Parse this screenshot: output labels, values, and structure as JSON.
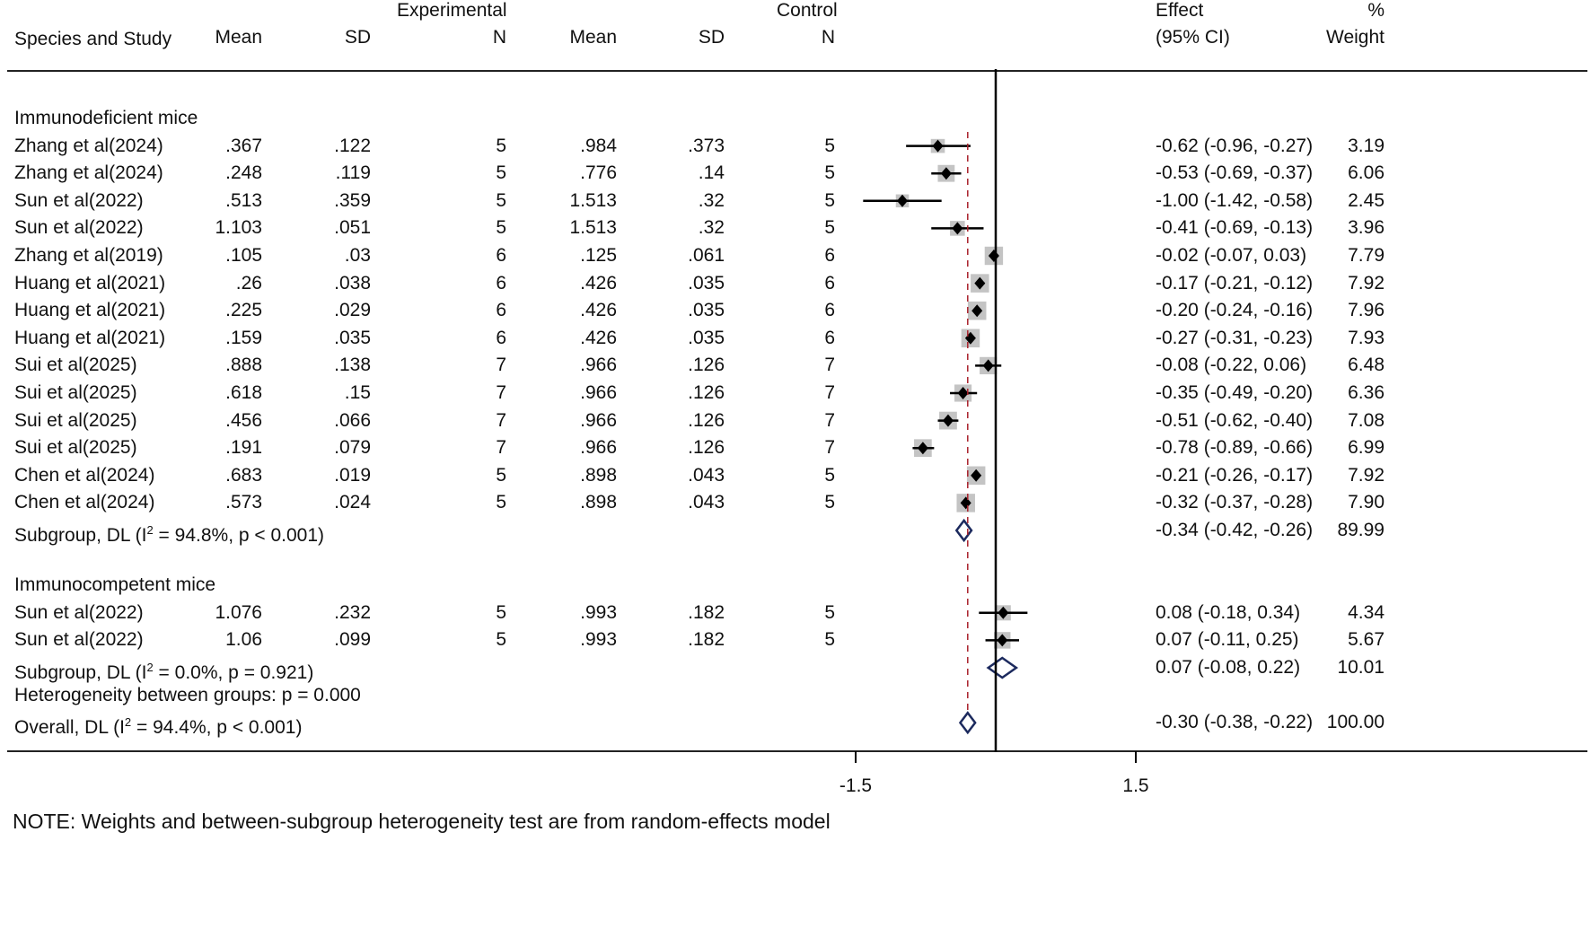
{
  "header": {
    "group_experimental": "Experimental",
    "group_control": "Control",
    "col_study": "Species and Study",
    "col_exp_mean": "Mean",
    "col_exp_sd": "SD",
    "col_exp_n": "N",
    "col_ctrl_mean": "Mean",
    "col_ctrl_sd": "SD",
    "col_ctrl_n": "N",
    "col_effect_1": "Effect",
    "col_effect_2": "(95% CI)",
    "col_weight_1": "%",
    "col_weight_2": "Weight"
  },
  "chart_data": {
    "type": "forest",
    "title": "",
    "xlabel": "",
    "x_ticks": [
      "-1.5",
      "1.5"
    ],
    "x_tick_values": [
      -1.5,
      1.5
    ],
    "xlim": [
      -3.0,
      4.2
    ],
    "null_line": 0,
    "overall_line": -0.3,
    "groups": [
      {
        "name": "Immunodeficient mice",
        "studies": [
          {
            "study": "Zhang et al(2024)",
            "exp_mean": ".367",
            "exp_sd": ".122",
            "exp_n": "5",
            "ctrl_mean": ".984",
            "ctrl_sd": ".373",
            "ctrl_n": "5",
            "effect": -0.62,
            "lo": -0.96,
            "hi": -0.27,
            "ci": "-0.62 (-0.96, -0.27)",
            "weight": "3.19",
            "w": 3.19
          },
          {
            "study": "Zhang et al(2024)",
            "exp_mean": ".248",
            "exp_sd": ".119",
            "exp_n": "5",
            "ctrl_mean": ".776",
            "ctrl_sd": ".14",
            "ctrl_n": "5",
            "effect": -0.53,
            "lo": -0.69,
            "hi": -0.37,
            "ci": "-0.53 (-0.69, -0.37)",
            "weight": "6.06",
            "w": 6.06
          },
          {
            "study": "Sun et al(2022)",
            "exp_mean": ".513",
            "exp_sd": ".359",
            "exp_n": "5",
            "ctrl_mean": "1.513",
            "ctrl_sd": ".32",
            "ctrl_n": "5",
            "effect": -1.0,
            "lo": -1.42,
            "hi": -0.58,
            "ci": "-1.00 (-1.42, -0.58)",
            "weight": "2.45",
            "w": 2.45
          },
          {
            "study": "Sun et al(2022)",
            "exp_mean": "1.103",
            "exp_sd": ".051",
            "exp_n": "5",
            "ctrl_mean": "1.513",
            "ctrl_sd": ".32",
            "ctrl_n": "5",
            "effect": -0.41,
            "lo": -0.69,
            "hi": -0.13,
            "ci": "-0.41 (-0.69, -0.13)",
            "weight": "3.96",
            "w": 3.96
          },
          {
            "study": "Zhang et al(2019)",
            "exp_mean": ".105",
            "exp_sd": ".03",
            "exp_n": "6",
            "ctrl_mean": ".125",
            "ctrl_sd": ".061",
            "ctrl_n": "6",
            "effect": -0.02,
            "lo": -0.07,
            "hi": 0.03,
            "ci": "-0.02 (-0.07, 0.03)",
            "weight": "7.79",
            "w": 7.79
          },
          {
            "study": "Huang et al(2021)",
            "exp_mean": ".26",
            "exp_sd": ".038",
            "exp_n": "6",
            "ctrl_mean": ".426",
            "ctrl_sd": ".035",
            "ctrl_n": "6",
            "effect": -0.17,
            "lo": -0.21,
            "hi": -0.12,
            "ci": "-0.17 (-0.21, -0.12)",
            "weight": "7.92",
            "w": 7.92
          },
          {
            "study": "Huang et al(2021)",
            "exp_mean": ".225",
            "exp_sd": ".029",
            "exp_n": "6",
            "ctrl_mean": ".426",
            "ctrl_sd": ".035",
            "ctrl_n": "6",
            "effect": -0.2,
            "lo": -0.24,
            "hi": -0.16,
            "ci": "-0.20 (-0.24, -0.16)",
            "weight": "7.96",
            "w": 7.96
          },
          {
            "study": "Huang et al(2021)",
            "exp_mean": ".159",
            "exp_sd": ".035",
            "exp_n": "6",
            "ctrl_mean": ".426",
            "ctrl_sd": ".035",
            "ctrl_n": "6",
            "effect": -0.27,
            "lo": -0.31,
            "hi": -0.23,
            "ci": "-0.27 (-0.31, -0.23)",
            "weight": "7.93",
            "w": 7.93
          },
          {
            "study": "Sui et al(2025)",
            "exp_mean": ".888",
            "exp_sd": ".138",
            "exp_n": "7",
            "ctrl_mean": ".966",
            "ctrl_sd": ".126",
            "ctrl_n": "7",
            "effect": -0.08,
            "lo": -0.22,
            "hi": 0.06,
            "ci": "-0.08 (-0.22, 0.06)",
            "weight": "6.48",
            "w": 6.48
          },
          {
            "study": "Sui et al(2025)",
            "exp_mean": ".618",
            "exp_sd": ".15",
            "exp_n": "7",
            "ctrl_mean": ".966",
            "ctrl_sd": ".126",
            "ctrl_n": "7",
            "effect": -0.35,
            "lo": -0.49,
            "hi": -0.2,
            "ci": "-0.35 (-0.49, -0.20)",
            "weight": "6.36",
            "w": 6.36
          },
          {
            "study": "Sui et al(2025)",
            "exp_mean": ".456",
            "exp_sd": ".066",
            "exp_n": "7",
            "ctrl_mean": ".966",
            "ctrl_sd": ".126",
            "ctrl_n": "7",
            "effect": -0.51,
            "lo": -0.62,
            "hi": -0.4,
            "ci": "-0.51 (-0.62, -0.40)",
            "weight": "7.08",
            "w": 7.08
          },
          {
            "study": "Sui et al(2025)",
            "exp_mean": ".191",
            "exp_sd": ".079",
            "exp_n": "7",
            "ctrl_mean": ".966",
            "ctrl_sd": ".126",
            "ctrl_n": "7",
            "effect": -0.78,
            "lo": -0.89,
            "hi": -0.66,
            "ci": "-0.78 (-0.89, -0.66)",
            "weight": "6.99",
            "w": 6.99
          },
          {
            "study": "Chen et al(2024)",
            "exp_mean": ".683",
            "exp_sd": ".019",
            "exp_n": "5",
            "ctrl_mean": ".898",
            "ctrl_sd": ".043",
            "ctrl_n": "5",
            "effect": -0.21,
            "lo": -0.26,
            "hi": -0.17,
            "ci": "-0.21 (-0.26, -0.17)",
            "weight": "7.92",
            "w": 7.92
          },
          {
            "study": "Chen et al(2024)",
            "exp_mean": ".573",
            "exp_sd": ".024",
            "exp_n": "5",
            "ctrl_mean": ".898",
            "ctrl_sd": ".043",
            "ctrl_n": "5",
            "effect": -0.32,
            "lo": -0.37,
            "hi": -0.28,
            "ci": "-0.32 (-0.37, -0.28)",
            "weight": "7.90",
            "w": 7.9
          }
        ],
        "subgroup": {
          "label_pre": "Subgroup, DL (I",
          "label_sup": "2",
          "label_post": " = 94.8%, p < 0.001)",
          "effect": -0.34,
          "lo": -0.42,
          "hi": -0.26,
          "ci": "-0.34 (-0.42, -0.26)",
          "weight": "89.99"
        }
      },
      {
        "name": "Immunocompetent mice",
        "studies": [
          {
            "study": "Sun et al(2022)",
            "exp_mean": "1.076",
            "exp_sd": ".232",
            "exp_n": "5",
            "ctrl_mean": ".993",
            "ctrl_sd": ".182",
            "ctrl_n": "5",
            "effect": 0.08,
            "lo": -0.18,
            "hi": 0.34,
            "ci": "0.08 (-0.18, 0.34)",
            "weight": "4.34",
            "w": 4.34
          },
          {
            "study": "Sun et al(2022)",
            "exp_mean": "1.06",
            "exp_sd": ".099",
            "exp_n": "5",
            "ctrl_mean": ".993",
            "ctrl_sd": ".182",
            "ctrl_n": "5",
            "effect": 0.07,
            "lo": -0.11,
            "hi": 0.25,
            "ci": "0.07 (-0.11, 0.25)",
            "weight": "5.67",
            "w": 5.67
          }
        ],
        "subgroup": {
          "label_pre": "Subgroup, DL (I",
          "label_sup": "2",
          "label_post": " = 0.0%, p = 0.921)",
          "effect": 0.07,
          "lo": -0.08,
          "hi": 0.22,
          "ci": "0.07 (-0.08, 0.22)",
          "weight": "10.01"
        }
      }
    ],
    "heterogeneity": "Heterogeneity between groups: p = 0.000",
    "overall": {
      "label_pre": "Overall, DL (I",
      "label_sup": "2",
      "label_post": " = 94.4%, p < 0.001)",
      "effect": -0.3,
      "lo": -0.38,
      "hi": -0.22,
      "ci": "-0.30 (-0.38, -0.22)",
      "weight": "100.00"
    }
  },
  "note": "NOTE: Weights and between-subgroup heterogeneity test are from random-effects model",
  "colors": {
    "marker": "#000000",
    "box": "#c4c4c4",
    "diamond": "#1c2a5e",
    "overall_line": "#a8202a"
  }
}
